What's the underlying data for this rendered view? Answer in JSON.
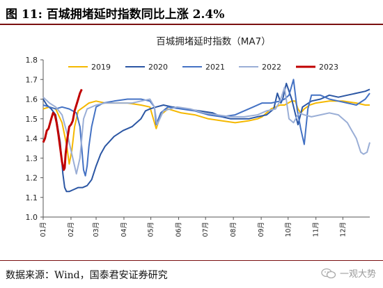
{
  "header": {
    "figure_title": "图 11:  百城拥堵延时指数同比上涨 2.4%"
  },
  "footer": {
    "source": "数据来源：Wind，国泰君安证券研究",
    "watermark": "一观大势",
    "watermark_icon": "wechat-icon"
  },
  "chart_data": {
    "type": "line",
    "title": "百城拥堵延时指数（MA7）",
    "xlabel": "",
    "ylabel": "",
    "x_ticks": [
      "01月",
      "02月",
      "03月",
      "04月",
      "05月",
      "06月",
      "07月",
      "08月",
      "09月",
      "10月",
      "11月",
      "12月"
    ],
    "xlim": [
      1,
      365
    ],
    "ylim": [
      1.0,
      1.8
    ],
    "y_ticks": [
      1.0,
      1.1,
      1.2,
      1.3,
      1.4,
      1.5,
      1.6,
      1.7,
      1.8
    ],
    "grid": false,
    "legend_position": "top",
    "series": [
      {
        "name": "2019",
        "color": "#f5b800",
        "x": [
          1,
          8,
          15,
          22,
          27,
          30,
          33,
          36,
          40,
          43,
          46,
          52,
          60,
          70,
          80,
          95,
          110,
          120,
          127,
          132,
          140,
          155,
          170,
          185,
          200,
          215,
          230,
          240,
          245,
          250,
          255,
          260,
          265,
          270,
          274,
          278,
          282,
          285,
          288,
          292,
          298,
          305,
          320,
          335,
          350,
          360,
          365
        ],
        "y": [
          1.55,
          1.56,
          1.55,
          1.48,
          1.37,
          1.27,
          1.34,
          1.46,
          1.54,
          1.55,
          1.56,
          1.58,
          1.59,
          1.58,
          1.58,
          1.58,
          1.57,
          1.56,
          1.45,
          1.52,
          1.55,
          1.53,
          1.52,
          1.5,
          1.49,
          1.48,
          1.49,
          1.5,
          1.51,
          1.53,
          1.55,
          1.56,
          1.57,
          1.57,
          1.58,
          1.59,
          1.59,
          1.55,
          1.53,
          1.55,
          1.57,
          1.58,
          1.59,
          1.59,
          1.58,
          1.57,
          1.57
        ]
      },
      {
        "name": "2020",
        "color": "#2b56a3",
        "x": [
          1,
          5,
          10,
          15,
          20,
          23,
          25,
          27,
          30,
          35,
          40,
          45,
          50,
          55,
          60,
          65,
          70,
          80,
          90,
          100,
          110,
          115,
          120,
          127,
          135,
          145,
          160,
          175,
          190,
          200,
          210,
          220,
          230,
          240,
          250,
          258,
          262,
          266,
          268,
          272,
          278,
          285,
          290,
          300,
          310,
          320,
          330,
          340,
          350,
          360,
          365
        ],
        "y": [
          1.6,
          1.57,
          1.55,
          1.52,
          1.38,
          1.22,
          1.15,
          1.13,
          1.13,
          1.14,
          1.15,
          1.15,
          1.16,
          1.19,
          1.26,
          1.32,
          1.36,
          1.41,
          1.44,
          1.46,
          1.5,
          1.54,
          1.55,
          1.56,
          1.57,
          1.56,
          1.55,
          1.54,
          1.53,
          1.51,
          1.5,
          1.5,
          1.5,
          1.51,
          1.52,
          1.55,
          1.63,
          1.58,
          1.6,
          1.68,
          1.6,
          1.47,
          1.56,
          1.59,
          1.6,
          1.62,
          1.61,
          1.62,
          1.63,
          1.64,
          1.65
        ]
      },
      {
        "name": "2021",
        "color": "#4472c4",
        "x": [
          1,
          8,
          15,
          22,
          30,
          38,
          42,
          44,
          46,
          48,
          50,
          52,
          55,
          60,
          68,
          80,
          95,
          110,
          120,
          125,
          127,
          132,
          140,
          155,
          170,
          185,
          200,
          215,
          225,
          235,
          245,
          255,
          265,
          270,
          275,
          280,
          284,
          288,
          292,
          296,
          300,
          310,
          320,
          330,
          340,
          350,
          360,
          365
        ],
        "y": [
          1.57,
          1.56,
          1.55,
          1.56,
          1.55,
          1.53,
          1.46,
          1.35,
          1.24,
          1.21,
          1.26,
          1.36,
          1.46,
          1.56,
          1.58,
          1.59,
          1.6,
          1.6,
          1.59,
          1.56,
          1.47,
          1.53,
          1.56,
          1.55,
          1.54,
          1.52,
          1.51,
          1.52,
          1.54,
          1.56,
          1.58,
          1.58,
          1.59,
          1.6,
          1.62,
          1.7,
          1.55,
          1.45,
          1.37,
          1.55,
          1.62,
          1.62,
          1.6,
          1.59,
          1.58,
          1.57,
          1.6,
          1.63
        ]
      },
      {
        "name": "2022",
        "color": "#9aaed6",
        "x": [
          1,
          8,
          15,
          22,
          28,
          33,
          38,
          42,
          46,
          50,
          55,
          60,
          70,
          85,
          100,
          110,
          120,
          125,
          128,
          135,
          150,
          165,
          180,
          195,
          210,
          225,
          240,
          250,
          260,
          265,
          270,
          275,
          280,
          286,
          292,
          300,
          310,
          320,
          330,
          340,
          345,
          350,
          355,
          358,
          362,
          365
        ],
        "y": [
          1.61,
          1.58,
          1.56,
          1.52,
          1.42,
          1.32,
          1.22,
          1.3,
          1.5,
          1.55,
          1.56,
          1.57,
          1.58,
          1.58,
          1.58,
          1.59,
          1.6,
          1.56,
          1.47,
          1.54,
          1.56,
          1.55,
          1.53,
          1.52,
          1.51,
          1.51,
          1.52,
          1.54,
          1.55,
          1.59,
          1.66,
          1.5,
          1.48,
          1.53,
          1.52,
          1.51,
          1.52,
          1.53,
          1.52,
          1.48,
          1.44,
          1.4,
          1.33,
          1.32,
          1.33,
          1.38
        ]
      },
      {
        "name": "2023",
        "color": "#c00000",
        "x": [
          1,
          3,
          5,
          7,
          10,
          12,
          14,
          16,
          18,
          20,
          22,
          24,
          25,
          26,
          28,
          30,
          32,
          34,
          36,
          38,
          40,
          42,
          44
        ],
        "y": [
          1.38,
          1.4,
          1.44,
          1.45,
          1.5,
          1.53,
          1.52,
          1.48,
          1.42,
          1.35,
          1.28,
          1.24,
          1.25,
          1.32,
          1.4,
          1.46,
          1.47,
          1.49,
          1.54,
          1.57,
          1.6,
          1.63,
          1.65
        ]
      }
    ]
  }
}
